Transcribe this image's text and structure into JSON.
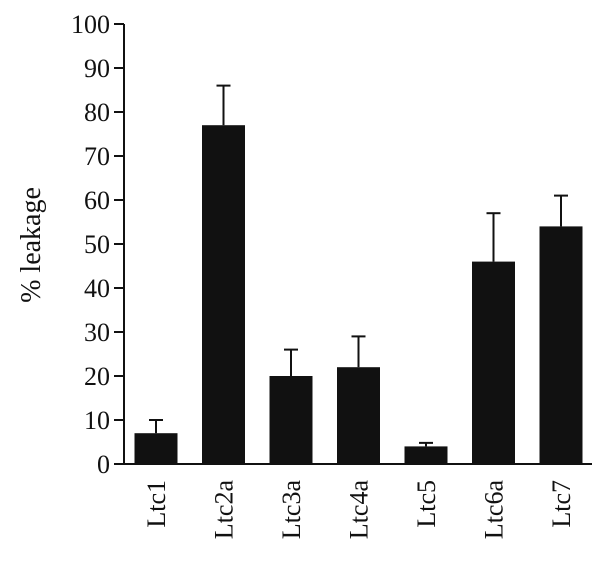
{
  "chart_data": {
    "type": "bar",
    "title": "",
    "xlabel": "",
    "ylabel": "% leakage",
    "ylim": [
      0,
      100
    ],
    "yticks": [
      0,
      10,
      20,
      30,
      40,
      50,
      60,
      70,
      80,
      90,
      100
    ],
    "categories": [
      "Ltc1",
      "Ltc2a",
      "Ltc3a",
      "Ltc4a",
      "Ltc5",
      "Ltc6a",
      "Ltc7"
    ],
    "values": [
      7,
      77,
      20,
      22,
      4,
      46,
      54
    ],
    "errors": [
      3,
      9,
      6,
      7,
      0.8,
      11,
      7
    ],
    "grid": false,
    "legend": "none",
    "bar_color": "#111111"
  }
}
